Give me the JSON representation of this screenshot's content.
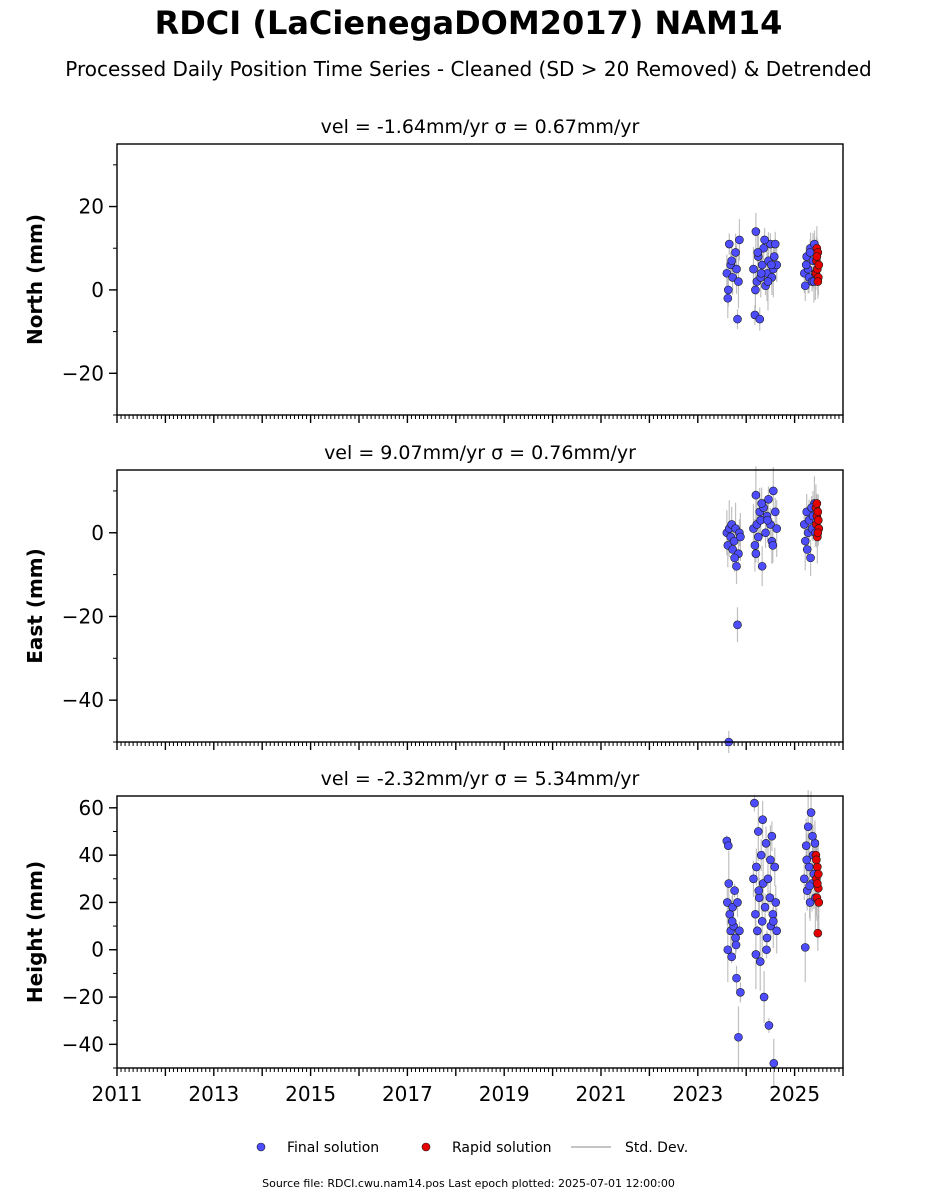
{
  "page": {
    "title": "RDCI (LaCienegaDOM2017) NAM14",
    "subtitle": "Processed Daily Position Time Series - Cleaned (SD > 20 Removed) & Detrended",
    "footer": "Source file: RDCI.cwu.nam14.pos  Last epoch plotted: 2025-07-01 12:00:00"
  },
  "colors": {
    "final": "#4d4dff",
    "rapid": "#e60000",
    "std_dev": "#b0b0b0",
    "marker_edge": "#1a1a1a"
  },
  "chart_data": {
    "type": "scatter",
    "x_axis": {
      "unit": "year",
      "range": [
        2011,
        2026
      ],
      "tick_labels": [
        "2011",
        "2013",
        "2015",
        "2017",
        "2019",
        "2021",
        "2023",
        "2025"
      ]
    },
    "legend": {
      "placement": "bottom-center",
      "entries": [
        "Final solution",
        "Rapid solution",
        "Std. Dev."
      ]
    },
    "panels": [
      {
        "id": "north",
        "title": "vel = -1.64mm/yr   σ = 0.67mm/yr",
        "ylabel": "North (mm)",
        "ylim": [
          -30,
          35
        ],
        "yticks": [
          -20,
          0,
          20
        ],
        "ytick_labels": [
          "−20",
          "0",
          "20"
        ],
        "ytick_minor_step": 10,
        "series": [
          {
            "name": "Final solution",
            "x": [
              2023.6,
              2023.62,
              2023.65,
              2023.68,
              2023.72,
              2023.78,
              2023.82,
              2023.84,
              2023.86,
              2023.63,
              2023.7,
              2023.8,
              2024.15,
              2024.18,
              2024.2,
              2024.22,
              2024.25,
              2024.28,
              2024.3,
              2024.33,
              2024.36,
              2024.4,
              2024.43,
              2024.46,
              2024.5,
              2024.53,
              2024.56,
              2024.6,
              2024.63,
              2024.19,
              2024.24,
              2024.31,
              2024.38,
              2024.45,
              2024.52,
              2024.58,
              2025.2,
              2025.22,
              2025.25,
              2025.28,
              2025.3,
              2025.33,
              2025.36,
              2025.38,
              2025.41,
              2025.43,
              2025.24,
              2025.32,
              2025.4
            ],
            "y": [
              4,
              -2,
              11,
              6,
              3,
              9,
              -7,
              2,
              12,
              0,
              7,
              5,
              5,
              -6,
              14,
              2,
              8,
              -7,
              3,
              6,
              10,
              1,
              4,
              7,
              11,
              3,
              5,
              11,
              6,
              0,
              9,
              4,
              12,
              2,
              6,
              8,
              4,
              1,
              8,
              5,
              3,
              10,
              2,
              7,
              11,
              4,
              6,
              9,
              2
            ]
          },
          {
            "name": "Rapid solution",
            "x": [
              2025.44,
              2025.45,
              2025.46,
              2025.47,
              2025.48,
              2025.49,
              2025.5,
              2025.46,
              2025.48
            ],
            "y": [
              4,
              7,
              10,
              5,
              9,
              3,
              6,
              8,
              2
            ]
          }
        ]
      },
      {
        "id": "east",
        "title": "vel = 9.07mm/yr   σ = 0.76mm/yr",
        "ylabel": "East (mm)",
        "ylim": [
          -50,
          15
        ],
        "yticks": [
          -40,
          -20,
          0
        ],
        "ytick_labels": [
          "−40",
          "−20",
          "0"
        ],
        "ytick_minor_step": 10,
        "series": [
          {
            "name": "Final solution",
            "x": [
              2023.6,
              2023.62,
              2023.65,
              2023.68,
              2023.7,
              2023.72,
              2023.75,
              2023.78,
              2023.8,
              2023.82,
              2023.84,
              2023.86,
              2023.88,
              2023.64,
              2023.76,
              2024.15,
              2024.18,
              2024.2,
              2024.22,
              2024.25,
              2024.28,
              2024.3,
              2024.33,
              2024.36,
              2024.4,
              2024.43,
              2024.46,
              2024.5,
              2024.53,
              2024.56,
              2024.6,
              2024.63,
              2024.2,
              2024.32,
              2024.44,
              2024.55,
              2025.2,
              2025.22,
              2025.25,
              2025.28,
              2025.3,
              2025.33,
              2025.36,
              2025.38,
              2025.41,
              2025.43,
              2025.26,
              2025.35
            ],
            "y": [
              0,
              -3,
              1,
              -1,
              2,
              -4,
              -2,
              1,
              -8,
              -22,
              -5,
              0,
              -1,
              -50,
              -6,
              1,
              -3,
              9,
              2,
              -1,
              5,
              3,
              -8,
              6,
              0,
              4,
              8,
              2,
              -2,
              10,
              5,
              1,
              -5,
              7,
              3,
              -3,
              2,
              -2,
              5,
              0,
              3,
              -6,
              1,
              4,
              7,
              0,
              -4,
              6
            ]
          },
          {
            "name": "Rapid solution",
            "x": [
              2025.44,
              2025.45,
              2025.46,
              2025.47,
              2025.48,
              2025.49,
              2025.5,
              2025.46,
              2025.48
            ],
            "y": [
              6,
              2,
              4,
              -1,
              5,
              3,
              1,
              7,
              0
            ]
          }
        ]
      },
      {
        "id": "height",
        "title": "vel = -2.32mm/yr   σ = 5.34mm/yr",
        "ylabel": "Height (mm)",
        "ylim": [
          -50,
          65
        ],
        "yticks": [
          -40,
          -20,
          0,
          20,
          40,
          60
        ],
        "ytick_labels": [
          "−40",
          "−20",
          "0",
          "20",
          "40",
          "60"
        ],
        "ytick_minor_step": 10,
        "series": [
          {
            "name": "Final solution",
            "x": [
              2023.6,
              2023.61,
              2023.62,
              2023.64,
              2023.66,
              2023.68,
              2023.7,
              2023.72,
              2023.74,
              2023.76,
              2023.78,
              2023.8,
              2023.82,
              2023.84,
              2023.86,
              2023.88,
              2023.63,
              2023.71,
              2023.79,
              2024.15,
              2024.17,
              2024.19,
              2024.21,
              2024.23,
              2024.25,
              2024.27,
              2024.29,
              2024.31,
              2024.33,
              2024.35,
              2024.37,
              2024.39,
              2024.41,
              2024.43,
              2024.45,
              2024.47,
              2024.49,
              2024.51,
              2024.53,
              2024.55,
              2024.57,
              2024.59,
              2024.61,
              2024.63,
              2024.2,
              2024.26,
              2024.34,
              2024.42,
              2024.5,
              2024.56,
              2025.2,
              2025.22,
              2025.24,
              2025.26,
              2025.28,
              2025.3,
              2025.32,
              2025.34,
              2025.36,
              2025.38,
              2025.4,
              2025.42,
              2025.43,
              2025.25,
              2025.31,
              2025.37
            ],
            "y": [
              46,
              20,
              0,
              28,
              15,
              8,
              -3,
              18,
              10,
              25,
              5,
              -12,
              20,
              -37,
              8,
              -18,
              44,
              12,
              2,
              30,
              62,
              15,
              35,
              8,
              50,
              22,
              -5,
              40,
              12,
              28,
              -20,
              18,
              45,
              5,
              30,
              -32,
              22,
              10,
              48,
              15,
              -48,
              35,
              20,
              8,
              -2,
              25,
              55,
              0,
              38,
              12,
              30,
              1,
              44,
              25,
              52,
              35,
              20,
              58,
              28,
              40,
              32,
              45,
              22,
              38,
              27,
              48
            ]
          },
          {
            "name": "Rapid solution",
            "x": [
              2025.44,
              2025.45,
              2025.46,
              2025.47,
              2025.48,
              2025.49,
              2025.5,
              2025.45,
              2025.47,
              2025.49
            ],
            "y": [
              40,
              30,
              22,
              35,
              7,
              26,
              20,
              38,
              28,
              32
            ]
          }
        ]
      }
    ]
  }
}
